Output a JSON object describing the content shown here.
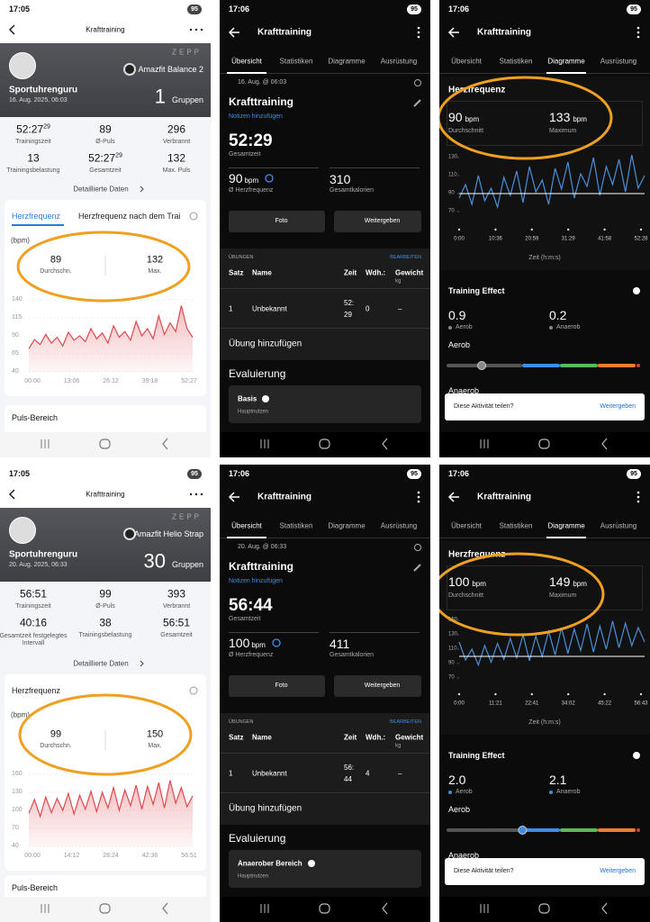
{
  "panels": [
    {
      "kind": "zepp",
      "status_time": "17:05",
      "battery": "95",
      "title": "Krafttraining",
      "brand": "ZEPP",
      "device": "Amazfit Balance 2",
      "user": "Sportuhrenguru",
      "date": "16. Aug. 2025, 06:03",
      "groups_count": "1",
      "groups_label": "Gruppen",
      "stats": [
        {
          "value": "52:27",
          "sup": "29",
          "label": "Trainingszeit"
        },
        {
          "value": "89",
          "label": "Ø-Puls"
        },
        {
          "value": "296",
          "label": "Verbrannt"
        },
        {
          "value": "13",
          "label": "Trainingsbelastung"
        },
        {
          "value": "52:27",
          "sup": "29",
          "label": "Gesamtzeit"
        },
        {
          "value": "132",
          "label": "Max. Puls"
        }
      ],
      "details_link": "Detaillierte Daten",
      "tabs": [
        "Herzfrequenz",
        "Herzfrequenz nach dem Trai"
      ],
      "chart_data": {
        "type": "line",
        "unit": "(bpm)",
        "avg": 89,
        "avg_label": "Durchschn.",
        "max": 132,
        "max_label": "Max.",
        "ylim": [
          40,
          140
        ],
        "yticks": [
          40,
          65,
          90,
          115,
          140
        ],
        "grid": true,
        "color": "#e0474c",
        "xtick_labels": [
          "00:00",
          "13:06",
          "26:12",
          "39:18",
          "52:27"
        ],
        "values": [
          72,
          85,
          78,
          92,
          80,
          88,
          76,
          95,
          84,
          90,
          82,
          100,
          86,
          94,
          80,
          104,
          88,
          96,
          84,
          110,
          90,
          100,
          86,
          118,
          92,
          108,
          96,
          132,
          100,
          88
        ]
      },
      "footer": "Puls-Bereich"
    },
    {
      "kind": "overview",
      "status_time": "17:06",
      "battery": "95",
      "title": "Krafttraining",
      "tabs": [
        "Übersicht",
        "Statistiken",
        "Diagramme",
        "Ausrüstung"
      ],
      "date": "16. Aug. @ 06:03",
      "activity": "Krafttraining",
      "notes": "Notizen hinzufügen",
      "duration": "52:29",
      "duration_label": "Gesamtzeit",
      "hr": "90",
      "hr_unit": "bpm",
      "hr_label": "Ø Herzfrequenz",
      "kcal": "310",
      "kcal_label": "Gesamtkalorien",
      "buttons": [
        "Foto",
        "Weitergeben"
      ],
      "section": "ÜBUNGEN",
      "edit": "BEARBEITEN",
      "table": {
        "header": [
          "Satz",
          "Name",
          "Zeit",
          "Wdh.:",
          "Gewicht"
        ],
        "unit": "kg",
        "rows": [
          [
            "1",
            "Unbekannt",
            "52:29",
            "0",
            "–"
          ]
        ]
      },
      "add": "Übung hinzufügen",
      "eval_title": "Evaluierung",
      "eval_name": "Basis",
      "eval_sub": "Hauptnutzen"
    },
    {
      "kind": "diagram",
      "status_time": "17:06",
      "battery": "95",
      "title": "Krafttraining",
      "tabs": [
        "Übersicht",
        "Statistiken",
        "Diagramme",
        "Ausrüstung"
      ],
      "hr_title": "Herzfrequenz",
      "avg_unit": "bpm",
      "avg_label": "Durchschnitt",
      "max_label": "Maximum",
      "chart_data": {
        "type": "line",
        "avg": 90,
        "max": 133,
        "ylim": [
          60,
          140
        ],
        "yticks": [
          70,
          90,
          110,
          130
        ],
        "color": "#4a90d9",
        "xtick_labels": [
          "0:00",
          "10:36",
          "20:59",
          "31:29",
          "41:58",
          "52:28"
        ],
        "xlabel": "Zeit (h:m:s)",
        "values": [
          85,
          100,
          78,
          110,
          82,
          96,
          75,
          108,
          88,
          115,
          80,
          120,
          92,
          105,
          78,
          118,
          95,
          125,
          85,
          112,
          98,
          130,
          88,
          120,
          100,
          128,
          92,
          133,
          96,
          110
        ]
      },
      "effect_title": "Training Effect",
      "effect": {
        "xlim": [
          0,
          5
        ],
        "aerob": {
          "value": 0.9,
          "label": "0.9"
        },
        "aerob_label": "Aerob",
        "anaerob": {
          "value": 0.2,
          "label": "0.2"
        },
        "anaerob_label": "Anaerob"
      },
      "bar_label": "Aerob",
      "bar2_label": "Anaerob",
      "toast": "Diese Aktivität teilen?",
      "toast_action": "Weitergeben"
    },
    {
      "kind": "zepp",
      "status_time": "17:05",
      "battery": "95",
      "title": "Krafttraining",
      "brand": "ZEPP",
      "device": "Amazfit Helio Strap",
      "user": "Sportuhrenguru",
      "date": "20. Aug. 2025, 06:33",
      "groups_count": "30",
      "groups_label": "Gruppen",
      "stats": [
        {
          "value": "56:51",
          "label": "Trainingszeit"
        },
        {
          "value": "99",
          "label": "Ø-Puls"
        },
        {
          "value": "393",
          "label": "Verbrannt"
        },
        {
          "value": "40:16",
          "label": "Gesamtzeit festgelegtes Intervall"
        },
        {
          "value": "38",
          "label": "Trainingsbelastung"
        },
        {
          "value": "56:51",
          "label": "Gesamtzeit"
        }
      ],
      "details_link": "Detaillierte Daten",
      "tabs": [
        "Herzfrequenz"
      ],
      "chart_data": {
        "type": "line",
        "unit": "(bpm)",
        "avg": 99,
        "avg_label": "Durchschn.",
        "max": 150,
        "max_label": "Max.",
        "ylim": [
          40,
          160
        ],
        "yticks": [
          40,
          70,
          100,
          130,
          160
        ],
        "grid": true,
        "color": "#e0474c",
        "xtick_labels": [
          "00:00",
          "14:12",
          "28:24",
          "42:36",
          "56:51"
        ],
        "values": [
          95,
          118,
          90,
          122,
          96,
          120,
          100,
          128,
          94,
          125,
          102,
          132,
          98,
          130,
          104,
          138,
          100,
          134,
          108,
          142,
          102,
          140,
          110,
          146,
          104,
          150,
          112,
          138,
          106,
          124
        ]
      },
      "footer": "Puls-Bereich"
    },
    {
      "kind": "overview",
      "status_time": "17:06",
      "battery": "95",
      "title": "Krafttraining",
      "tabs": [
        "Übersicht",
        "Statistiken",
        "Diagramme",
        "Ausrüstung"
      ],
      "date": "20. Aug. @ 06:33",
      "activity": "Krafttraining",
      "notes": "Notizen hinzufügen",
      "duration": "56:44",
      "duration_label": "Gesamtzeit",
      "hr": "100",
      "hr_unit": "bpm",
      "hr_label": "Ø Herzfrequenz",
      "kcal": "411",
      "kcal_label": "Gesamtkalorien",
      "buttons": [
        "Foto",
        "Weitergeben"
      ],
      "section": "ÜBUNGEN",
      "edit": "BEARBEITEN",
      "table": {
        "header": [
          "Satz",
          "Name",
          "Zeit",
          "Wdh.:",
          "Gewicht"
        ],
        "unit": "kg",
        "rows": [
          [
            "1",
            "Unbekannt",
            "56:44",
            "4",
            "–"
          ]
        ]
      },
      "add": "Übung hinzufügen",
      "eval_title": "Evaluierung",
      "eval_name": "Anaerober Bereich",
      "eval_sub": "Hauptnutzen"
    },
    {
      "kind": "diagram",
      "status_time": "17:06",
      "battery": "95",
      "title": "Krafttraining",
      "tabs": [
        "Übersicht",
        "Statistiken",
        "Diagramme",
        "Ausrüstung"
      ],
      "hr_title": "Herzfrequenz",
      "avg_unit": "bpm",
      "avg_label": "Durchschnitt",
      "max_label": "Maximum",
      "chart_data": {
        "type": "line",
        "avg": 100,
        "max": 149,
        "ylim": [
          60,
          160
        ],
        "yticks": [
          70,
          90,
          110,
          130,
          150
        ],
        "color": "#4a90d9",
        "xtick_labels": [
          "0:00",
          "11:21",
          "22:41",
          "34:02",
          "45:22",
          "56:43"
        ],
        "xlabel": "Zeit (h:m:s)",
        "values": [
          120,
          95,
          110,
          88,
          115,
          92,
          118,
          96,
          125,
          98,
          130,
          94,
          128,
          100,
          135,
          102,
          140,
          104,
          138,
          108,
          145,
          106,
          142,
          110,
          149,
          112,
          146,
          115,
          140,
          120
        ]
      },
      "effect_title": "Training Effect",
      "effect": {
        "xlim": [
          0,
          5
        ],
        "aerob": {
          "value": 2,
          "label": "2.0"
        },
        "aerob_label": "Aerob",
        "anaerob": {
          "value": 2.1,
          "label": "2.1"
        },
        "anaerob_label": "Anaerob"
      },
      "bar_label": "Aerob",
      "bar2_label": "Anaerob",
      "toast": "Diese Aktivität teilen?",
      "toast_action": "Weitergeben"
    }
  ]
}
